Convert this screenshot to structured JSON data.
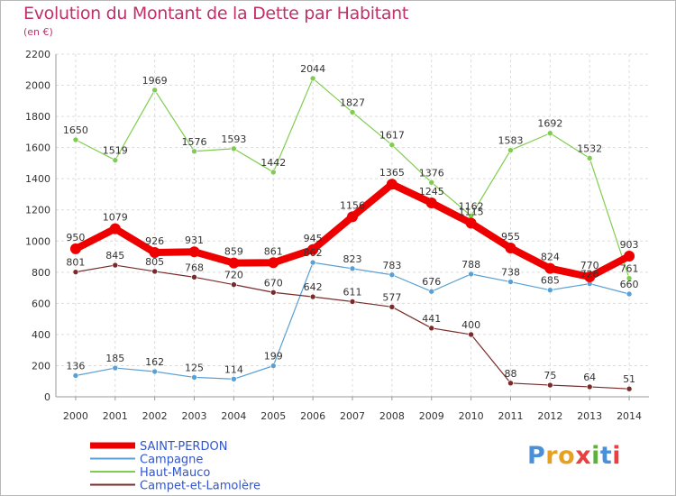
{
  "title": "Evolution du Montant de la Dette par Habitant",
  "subtitle": "(en €)",
  "logo": {
    "letters": [
      "P",
      "r",
      "o",
      "x",
      "i",
      "t",
      "i"
    ],
    "colors": [
      "#4a90d9",
      "#e8a020",
      "#e8a020",
      "#e84040",
      "#60b040",
      "#4a90d9",
      "#e84040"
    ]
  },
  "chart_data": {
    "type": "line",
    "x": [
      "2000",
      "2001",
      "2002",
      "2003",
      "2004",
      "2005",
      "2006",
      "2007",
      "2008",
      "2009",
      "2010",
      "2011",
      "2012",
      "2013",
      "2014"
    ],
    "ylim": [
      0,
      2200
    ],
    "yticks": [
      "0",
      "200",
      "400",
      "600",
      "800",
      "1000",
      "1200",
      "1400",
      "1600",
      "1800",
      "2000",
      "2200"
    ],
    "grid": true,
    "legend": "bottom-left",
    "series": [
      {
        "name": "Haut-Mauco",
        "color": "#80cc50",
        "values": [
          1650,
          1519,
          1969,
          1576,
          1593,
          1442,
          2044,
          1827,
          1617,
          1376,
          1162,
          1583,
          1692,
          1532,
          761
        ]
      },
      {
        "name": "Campagne",
        "color": "#5aa0d4",
        "values": [
          136,
          185,
          162,
          125,
          114,
          199,
          862,
          823,
          783,
          676,
          788,
          738,
          685,
          726,
          660
        ]
      },
      {
        "name": "Campet-et-Lamolère",
        "color": "#7a2a2a",
        "values": [
          801,
          845,
          805,
          768,
          720,
          670,
          642,
          611,
          577,
          441,
          400,
          88,
          75,
          64,
          51
        ]
      },
      {
        "name": "SAINT-PERDON",
        "color": "#ee0000",
        "values": [
          950,
          1079,
          926,
          931,
          859,
          861,
          945,
          1156,
          1365,
          1245,
          1115,
          955,
          824,
          770,
          903
        ]
      }
    ],
    "legend_items": [
      {
        "name": "SAINT-PERDON",
        "color": "#ee0000"
      },
      {
        "name": "Campagne",
        "color": "#5aa0d4"
      },
      {
        "name": "Haut-Mauco",
        "color": "#80cc50"
      },
      {
        "name": "Campet-et-Lamolère",
        "color": "#7a2a2a"
      }
    ]
  }
}
